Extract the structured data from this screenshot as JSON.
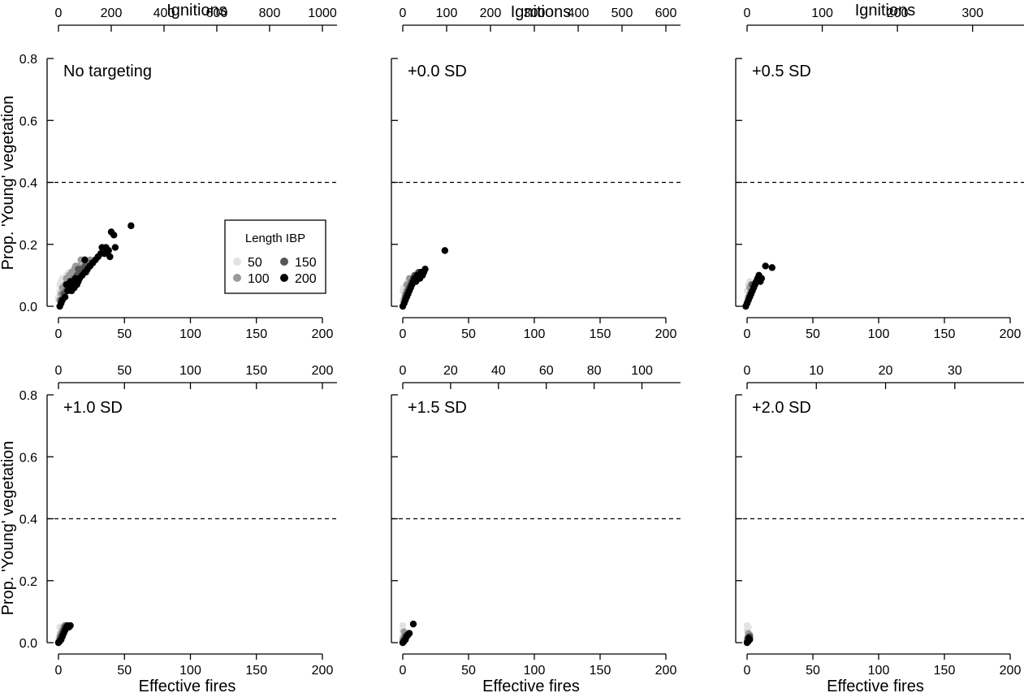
{
  "chart_data": {
    "type": "scatter",
    "layout": "2 rows x 3 columns of panels",
    "ylabel": "Prop. 'Young' vegetation",
    "xlabel_bottom": "Effective fires",
    "xlabel_top": "Ignitions",
    "ylim": [
      0,
      0.8
    ],
    "yticks": [
      0.0,
      0.2,
      0.4,
      0.6,
      0.8
    ],
    "ytick_labels": [
      "0.0",
      "0.2",
      "0.4",
      "0.6",
      "0.8"
    ],
    "xlim": [
      0,
      200
    ],
    "xticks": [
      0,
      50,
      100,
      150,
      200
    ],
    "xtick_labels": [
      "0",
      "50",
      "100",
      "150",
      "200"
    ],
    "reference_line": {
      "y": 0.4,
      "style": "dashed"
    },
    "grid": false,
    "legend": {
      "title": "Length IBP",
      "placement": "inside first panel, lower-right",
      "entries": [
        {
          "label": "50",
          "color": "#e2e2e2"
        },
        {
          "label": "150",
          "color": "#555555"
        },
        {
          "label": "100",
          "color": "#9a9a9a"
        },
        {
          "label": "200",
          "color": "#000000"
        }
      ]
    },
    "series_colors": {
      "50": "#e2e2e2",
      "100": "#9a9a9a",
      "150": "#555555",
      "200": "#000000"
    },
    "panels": [
      {
        "label": "No targeting",
        "top_axis": {
          "max": 1000,
          "ticks": [
            0,
            200,
            400,
            600,
            800,
            1000
          ],
          "tick_labels": [
            "0",
            "200",
            "400",
            "600",
            "800",
            "1000"
          ]
        },
        "series": {
          "50": [
            [
              0,
              0.02
            ],
            [
              1,
              0.04
            ],
            [
              2,
              0.05
            ],
            [
              3,
              0.06
            ],
            [
              1,
              0.07
            ],
            [
              2,
              0.08
            ],
            [
              4,
              0.06
            ],
            [
              0,
              0.03
            ],
            [
              5,
              0.08
            ],
            [
              3,
              0.09
            ],
            [
              6,
              0.1
            ],
            [
              8,
              0.11
            ],
            [
              10,
              0.1
            ],
            [
              12,
              0.12
            ],
            [
              14,
              0.13
            ],
            [
              2,
              0.07
            ],
            [
              1,
              0.05
            ]
          ],
          "100": [
            [
              1,
              0.02
            ],
            [
              2,
              0.04
            ],
            [
              3,
              0.06
            ],
            [
              5,
              0.07
            ],
            [
              6,
              0.09
            ],
            [
              8,
              0.1
            ],
            [
              10,
              0.11
            ],
            [
              12,
              0.12
            ],
            [
              15,
              0.13
            ],
            [
              4,
              0.05
            ],
            [
              7,
              0.08
            ],
            [
              11,
              0.1
            ],
            [
              14,
              0.11
            ],
            [
              16,
              0.12
            ],
            [
              9,
              0.1
            ],
            [
              13,
              0.13
            ],
            [
              20,
              0.14
            ],
            [
              17,
              0.15
            ],
            [
              24,
              0.15
            ]
          ],
          "150": [
            [
              2,
              0.02
            ],
            [
              4,
              0.04
            ],
            [
              6,
              0.05
            ],
            [
              8,
              0.07
            ],
            [
              10,
              0.08
            ],
            [
              12,
              0.09
            ],
            [
              14,
              0.1
            ],
            [
              16,
              0.11
            ],
            [
              18,
              0.12
            ],
            [
              20,
              0.13
            ],
            [
              22,
              0.13
            ],
            [
              9,
              0.06
            ],
            [
              13,
              0.08
            ],
            [
              17,
              0.1
            ],
            [
              21,
              0.11
            ],
            [
              25,
              0.14
            ],
            [
              7,
              0.05
            ],
            [
              15,
              0.12
            ]
          ],
          "200": [
            [
              1,
              0.0
            ],
            [
              2,
              0.01
            ],
            [
              3,
              0.02
            ],
            [
              5,
              0.03
            ],
            [
              7,
              0.05
            ],
            [
              8,
              0.06
            ],
            [
              10,
              0.05
            ],
            [
              12,
              0.06
            ],
            [
              14,
              0.07
            ],
            [
              15,
              0.08
            ],
            [
              16,
              0.09
            ],
            [
              18,
              0.1
            ],
            [
              20,
              0.11
            ],
            [
              22,
              0.12
            ],
            [
              20,
              0.15
            ],
            [
              24,
              0.13
            ],
            [
              26,
              0.14
            ],
            [
              28,
              0.15
            ],
            [
              30,
              0.16
            ],
            [
              32,
              0.17
            ],
            [
              33,
              0.19
            ],
            [
              35,
              0.17
            ],
            [
              36,
              0.19
            ],
            [
              38,
              0.18
            ],
            [
              39,
              0.16
            ],
            [
              40,
              0.24
            ],
            [
              42,
              0.23
            ],
            [
              43,
              0.19
            ],
            [
              55,
              0.26
            ],
            [
              6,
              0.07
            ],
            [
              9,
              0.08
            ],
            [
              11,
              0.07
            ],
            [
              13,
              0.09
            ]
          ]
        }
      },
      {
        "label": "+0.0 SD",
        "top_axis": {
          "max": 600,
          "ticks": [
            0,
            100,
            200,
            300,
            400,
            500,
            600
          ],
          "tick_labels": [
            "0",
            "100",
            "200",
            "300",
            "400",
            "500",
            "600"
          ]
        },
        "series": {
          "50": [
            [
              0,
              0.02
            ],
            [
              1,
              0.03
            ],
            [
              2,
              0.05
            ],
            [
              1,
              0.06
            ],
            [
              3,
              0.07
            ],
            [
              4,
              0.08
            ],
            [
              2,
              0.04
            ],
            [
              0,
              0.05
            ],
            [
              5,
              0.06
            ]
          ],
          "100": [
            [
              1,
              0.02
            ],
            [
              2,
              0.04
            ],
            [
              3,
              0.05
            ],
            [
              4,
              0.06
            ],
            [
              5,
              0.07
            ],
            [
              6,
              0.08
            ],
            [
              7,
              0.09
            ],
            [
              8,
              0.08
            ],
            [
              3,
              0.07
            ],
            [
              5,
              0.09
            ]
          ],
          "150": [
            [
              1,
              0.01
            ],
            [
              2,
              0.03
            ],
            [
              3,
              0.04
            ],
            [
              4,
              0.05
            ],
            [
              5,
              0.06
            ],
            [
              6,
              0.07
            ],
            [
              7,
              0.08
            ],
            [
              8,
              0.09
            ],
            [
              9,
              0.1
            ],
            [
              10,
              0.1
            ],
            [
              12,
              0.11
            ]
          ],
          "200": [
            [
              0,
              0.0
            ],
            [
              1,
              0.01
            ],
            [
              2,
              0.02
            ],
            [
              3,
              0.03
            ],
            [
              4,
              0.04
            ],
            [
              5,
              0.05
            ],
            [
              6,
              0.06
            ],
            [
              7,
              0.07
            ],
            [
              8,
              0.08
            ],
            [
              9,
              0.09
            ],
            [
              10,
              0.08
            ],
            [
              11,
              0.1
            ],
            [
              12,
              0.1
            ],
            [
              13,
              0.09
            ],
            [
              14,
              0.11
            ],
            [
              15,
              0.1
            ],
            [
              16,
              0.11
            ],
            [
              17,
              0.12
            ],
            [
              32,
              0.18
            ]
          ]
        }
      },
      {
        "label": "+0.5 SD",
        "top_axis": {
          "max": 350,
          "ticks": [
            0,
            100,
            200,
            300
          ],
          "tick_labels": [
            "0",
            "100",
            "200",
            "300"
          ]
        },
        "series": {
          "50": [
            [
              0,
              0.02
            ],
            [
              1,
              0.03
            ],
            [
              0,
              0.05
            ],
            [
              2,
              0.06
            ],
            [
              1,
              0.07
            ],
            [
              2,
              0.08
            ]
          ],
          "100": [
            [
              0,
              0.01
            ],
            [
              1,
              0.03
            ],
            [
              2,
              0.04
            ],
            [
              3,
              0.05
            ],
            [
              2,
              0.06
            ],
            [
              3,
              0.07
            ]
          ],
          "150": [
            [
              0,
              0.01
            ],
            [
              1,
              0.02
            ],
            [
              2,
              0.03
            ],
            [
              3,
              0.04
            ],
            [
              4,
              0.05
            ],
            [
              5,
              0.06
            ],
            [
              4,
              0.07
            ]
          ],
          "200": [
            [
              -1,
              0.0
            ],
            [
              0,
              0.01
            ],
            [
              1,
              0.02
            ],
            [
              2,
              0.03
            ],
            [
              3,
              0.04
            ],
            [
              4,
              0.05
            ],
            [
              5,
              0.06
            ],
            [
              6,
              0.07
            ],
            [
              7,
              0.08
            ],
            [
              8,
              0.09
            ],
            [
              9,
              0.1
            ],
            [
              10,
              0.08
            ],
            [
              11,
              0.09
            ],
            [
              14,
              0.13
            ],
            [
              19,
              0.125
            ]
          ]
        }
      },
      {
        "label": "+1.0 SD",
        "top_axis": {
          "max": 200,
          "ticks": [
            0,
            50,
            100,
            150,
            200
          ],
          "tick_labels": [
            "0",
            "50",
            "100",
            "150",
            "200"
          ]
        },
        "series": {
          "50": [
            [
              0,
              0.01
            ],
            [
              1,
              0.03
            ],
            [
              2,
              0.04
            ],
            [
              3,
              0.05
            ],
            [
              4,
              0.055
            ],
            [
              1,
              0.05
            ]
          ],
          "100": [
            [
              0,
              0.0
            ],
            [
              1,
              0.02
            ],
            [
              2,
              0.03
            ],
            [
              3,
              0.04
            ],
            [
              4,
              0.05
            ],
            [
              5,
              0.055
            ]
          ],
          "150": [
            [
              0,
              0.0
            ],
            [
              1,
              0.01
            ],
            [
              2,
              0.02
            ],
            [
              3,
              0.03
            ],
            [
              4,
              0.04
            ],
            [
              5,
              0.05
            ],
            [
              6,
              0.055
            ]
          ],
          "200": [
            [
              0,
              0.0
            ],
            [
              1,
              0.005
            ],
            [
              2,
              0.01
            ],
            [
              3,
              0.02
            ],
            [
              4,
              0.03
            ],
            [
              5,
              0.04
            ],
            [
              6,
              0.05
            ],
            [
              7,
              0.055
            ],
            [
              8,
              0.05
            ],
            [
              9,
              0.055
            ]
          ]
        }
      },
      {
        "label": "+1.5 SD",
        "top_axis": {
          "max": 110,
          "ticks": [
            0,
            20,
            40,
            60,
            80,
            100
          ],
          "tick_labels": [
            "0",
            "20",
            "40",
            "60",
            "80",
            "100"
          ]
        },
        "series": {
          "50": [
            [
              0,
              0.02
            ],
            [
              0,
              0.04
            ],
            [
              0,
              0.055
            ],
            [
              1,
              0.03
            ]
          ],
          "100": [
            [
              0,
              0.01
            ],
            [
              1,
              0.02
            ],
            [
              1,
              0.035
            ],
            [
              2,
              0.03
            ]
          ],
          "150": [
            [
              0,
              0.0
            ],
            [
              1,
              0.01
            ],
            [
              2,
              0.02
            ],
            [
              3,
              0.025
            ]
          ],
          "200": [
            [
              0,
              0.0
            ],
            [
              1,
              0.005
            ],
            [
              2,
              0.01
            ],
            [
              3,
              0.02
            ],
            [
              4,
              0.025
            ],
            [
              5,
              0.03
            ],
            [
              8,
              0.06
            ]
          ]
        }
      },
      {
        "label": "+2.0 SD",
        "top_axis": {
          "max": 38,
          "ticks": [
            0,
            10,
            20,
            30
          ],
          "tick_labels": [
            "0",
            "10",
            "20",
            "30"
          ]
        },
        "series": {
          "50": [
            [
              0,
              0.02
            ],
            [
              0,
              0.04
            ],
            [
              0,
              0.055
            ],
            [
              1,
              0.05
            ]
          ],
          "100": [
            [
              0,
              0.01
            ],
            [
              1,
              0.02
            ],
            [
              1,
              0.03
            ],
            [
              2,
              0.025
            ]
          ],
          "150": [
            [
              0,
              0.0
            ],
            [
              1,
              0.01
            ],
            [
              2,
              0.015
            ],
            [
              2,
              0.02
            ]
          ],
          "200": [
            [
              0,
              0.0
            ],
            [
              1,
              0.005
            ],
            [
              2,
              0.01
            ],
            [
              1,
              0.015
            ]
          ]
        }
      }
    ]
  }
}
